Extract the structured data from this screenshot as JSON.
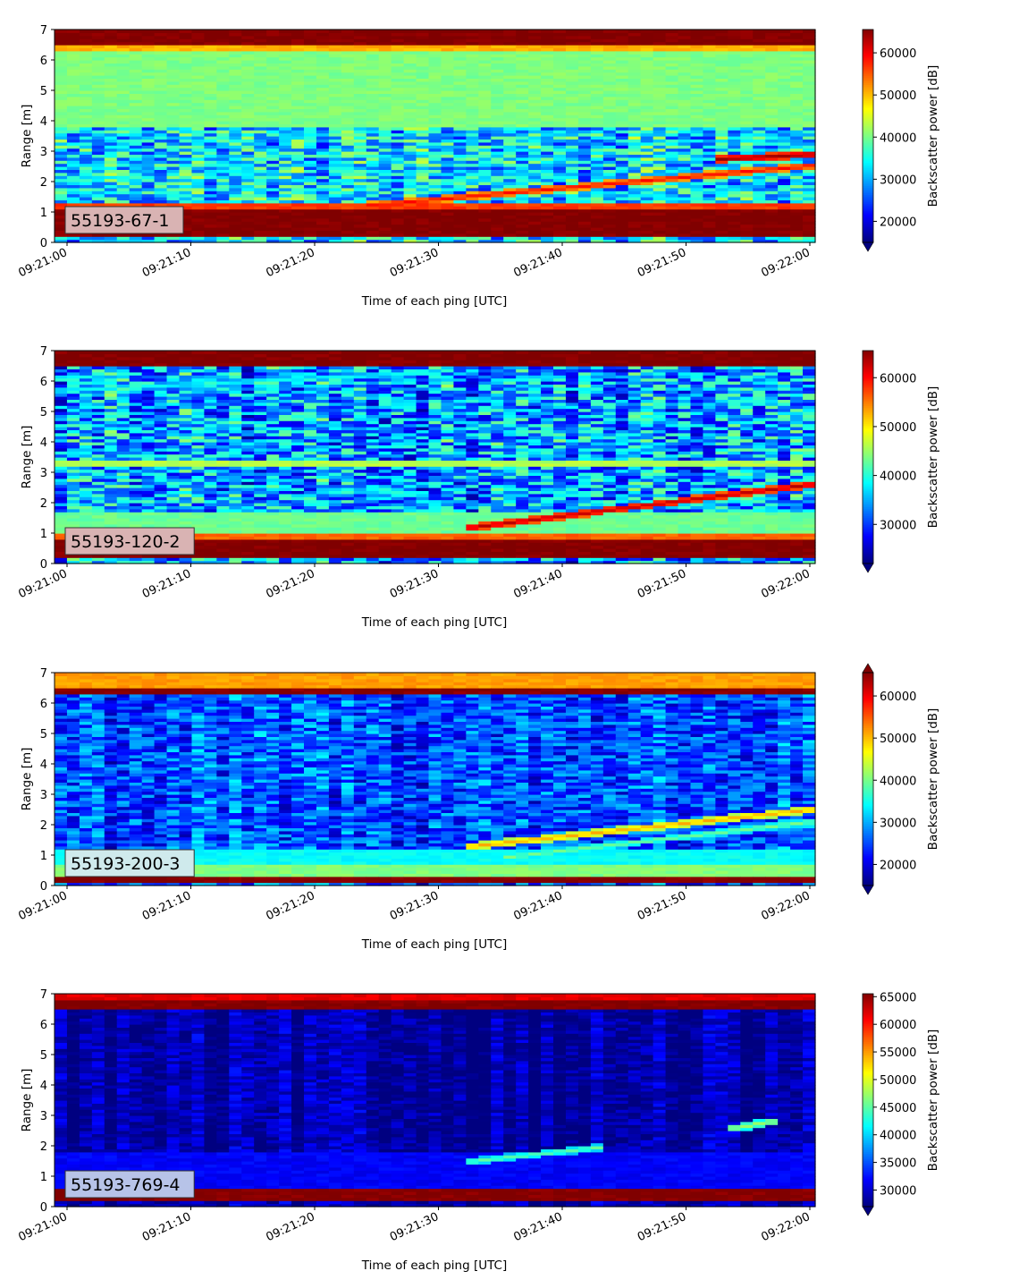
{
  "chart_data": [
    {
      "type": "heatmap",
      "label": "55193-67-1",
      "label_box_color": "#d9b3b3",
      "xlabel": "Time of each ping [UTC]",
      "ylabel": "Range [m]",
      "ylim": [
        0,
        7
      ],
      "yticks": [
        "0",
        "1",
        "2",
        "3",
        "4",
        "5",
        "6",
        "7"
      ],
      "xticks": [
        "09:21:00",
        "09:21:10",
        "09:21:20",
        "09:21:30",
        "09:21:40",
        "09:21:50",
        "09:22:00"
      ],
      "colorbar_label": "Backscatter power [dB]",
      "colorbar_ticks": [
        "20000",
        "30000",
        "40000",
        "50000",
        "60000"
      ],
      "colorbar_range": [
        15000,
        65535
      ],
      "colorbar_extend": "min",
      "background_level": 0.35,
      "noise": 0.18,
      "bands": [
        {
          "from": 0.2,
          "to": 1.15,
          "level": 1.0
        },
        {
          "from": 1.15,
          "to": 1.3,
          "level": 0.82
        },
        {
          "from": 3.85,
          "to": 6.3,
          "level": 0.5
        },
        {
          "from": 6.3,
          "to": 6.45,
          "level": 0.7
        },
        {
          "from": 6.45,
          "to": 6.55,
          "level": 0.9
        },
        {
          "from": 6.55,
          "to": 7.0,
          "level": 1.0
        }
      ],
      "tracks": [
        {
          "t0": 24,
          "t1": 62,
          "r0": 1.2,
          "r1": 2.6,
          "level": 0.88
        },
        {
          "t0": 53,
          "t1": 60,
          "r0": 2.75,
          "r1": 2.9,
          "level": 0.98
        }
      ]
    },
    {
      "type": "heatmap",
      "label": "55193-120-2",
      "label_box_color": "#d9b3b3",
      "xlabel": "Time of each ping [UTC]",
      "ylabel": "Range [m]",
      "ylim": [
        0,
        7
      ],
      "yticks": [
        "0",
        "1",
        "2",
        "3",
        "4",
        "5",
        "6",
        "7"
      ],
      "xticks": [
        "09:21:00",
        "09:21:10",
        "09:21:20",
        "09:21:30",
        "09:21:40",
        "09:21:50",
        "09:22:00"
      ],
      "colorbar_label": "Backscatter power [dB]",
      "colorbar_ticks": [
        "30000",
        "40000",
        "50000",
        "60000"
      ],
      "colorbar_range": [
        22000,
        65535
      ],
      "colorbar_extend": "min",
      "background_level": 0.28,
      "noise": 0.2,
      "bands": [
        {
          "from": 0.2,
          "to": 0.85,
          "level": 1.0
        },
        {
          "from": 0.85,
          "to": 1.05,
          "level": 0.78
        },
        {
          "from": 1.05,
          "to": 1.7,
          "level": 0.48
        },
        {
          "from": 3.2,
          "to": 3.4,
          "level": 0.55
        },
        {
          "from": 6.45,
          "to": 7.0,
          "level": 1.0
        }
      ],
      "tracks": [
        {
          "t0": 33,
          "t1": 60,
          "r0": 1.2,
          "r1": 2.6,
          "level": 0.95
        },
        {
          "t0": 0,
          "t1": 30,
          "r0": 5.7,
          "r1": 6.3,
          "level": 0.4
        }
      ]
    },
    {
      "type": "heatmap",
      "label": "55193-200-3",
      "label_box_color": "#cfeaec",
      "xlabel": "Time of each ping [UTC]",
      "ylabel": "Range [m]",
      "ylim": [
        0,
        7
      ],
      "yticks": [
        "0",
        "1",
        "2",
        "3",
        "4",
        "5",
        "6",
        "7"
      ],
      "xticks": [
        "09:21:00",
        "09:21:10",
        "09:21:20",
        "09:21:30",
        "09:21:40",
        "09:21:50",
        "09:22:00"
      ],
      "colorbar_label": "Backscatter power [dB]",
      "colorbar_ticks": [
        "20000",
        "30000",
        "40000",
        "50000",
        "60000"
      ],
      "colorbar_range": [
        15000,
        65535
      ],
      "colorbar_extend": "both",
      "background_level": 0.2,
      "noise": 0.13,
      "bands": [
        {
          "from": 0.05,
          "to": 0.3,
          "level": 1.0
        },
        {
          "from": 0.3,
          "to": 0.75,
          "level": 0.5
        },
        {
          "from": 0.75,
          "to": 1.2,
          "level": 0.38
        },
        {
          "from": 6.3,
          "to": 6.45,
          "level": 1.0
        },
        {
          "from": 6.45,
          "to": 7.0,
          "level": 0.72
        }
      ],
      "tracks": [
        {
          "t0": 33,
          "t1": 60,
          "r0": 1.3,
          "r1": 2.5,
          "level": 0.72
        },
        {
          "t0": 36,
          "t1": 60,
          "r0": 0.95,
          "r1": 2.1,
          "level": 0.5
        }
      ]
    },
    {
      "type": "heatmap",
      "label": "55193-769-4",
      "label_box_color": "#b7c3e8",
      "xlabel": "Time of each ping [UTC]",
      "ylabel": "Range [m]",
      "ylim": [
        0,
        7
      ],
      "yticks": [
        "0",
        "1",
        "2",
        "3",
        "4",
        "5",
        "6",
        "7"
      ],
      "xticks": [
        "09:21:00",
        "09:21:10",
        "09:21:20",
        "09:21:30",
        "09:21:40",
        "09:21:50",
        "09:22:00"
      ],
      "colorbar_label": "Backscatter power [dB]",
      "colorbar_ticks": [
        "30000",
        "35000",
        "40000",
        "45000",
        "50000",
        "55000",
        "60000",
        "65000"
      ],
      "colorbar_range": [
        27000,
        65535
      ],
      "colorbar_extend": "min",
      "background_level": 0.03,
      "noise": 0.06,
      "bands": [
        {
          "from": 0.2,
          "to": 0.6,
          "level": 1.0
        },
        {
          "from": 0.6,
          "to": 1.8,
          "level": 0.12
        },
        {
          "from": 6.45,
          "to": 6.85,
          "level": 1.0
        },
        {
          "from": 6.85,
          "to": 7.0,
          "level": 0.9
        }
      ],
      "tracks": [
        {
          "t0": 33,
          "t1": 43,
          "r0": 1.5,
          "r1": 1.95,
          "level": 0.48
        },
        {
          "t0": 54,
          "t1": 57,
          "r0": 2.6,
          "r1": 2.8,
          "level": 0.55
        }
      ]
    }
  ]
}
